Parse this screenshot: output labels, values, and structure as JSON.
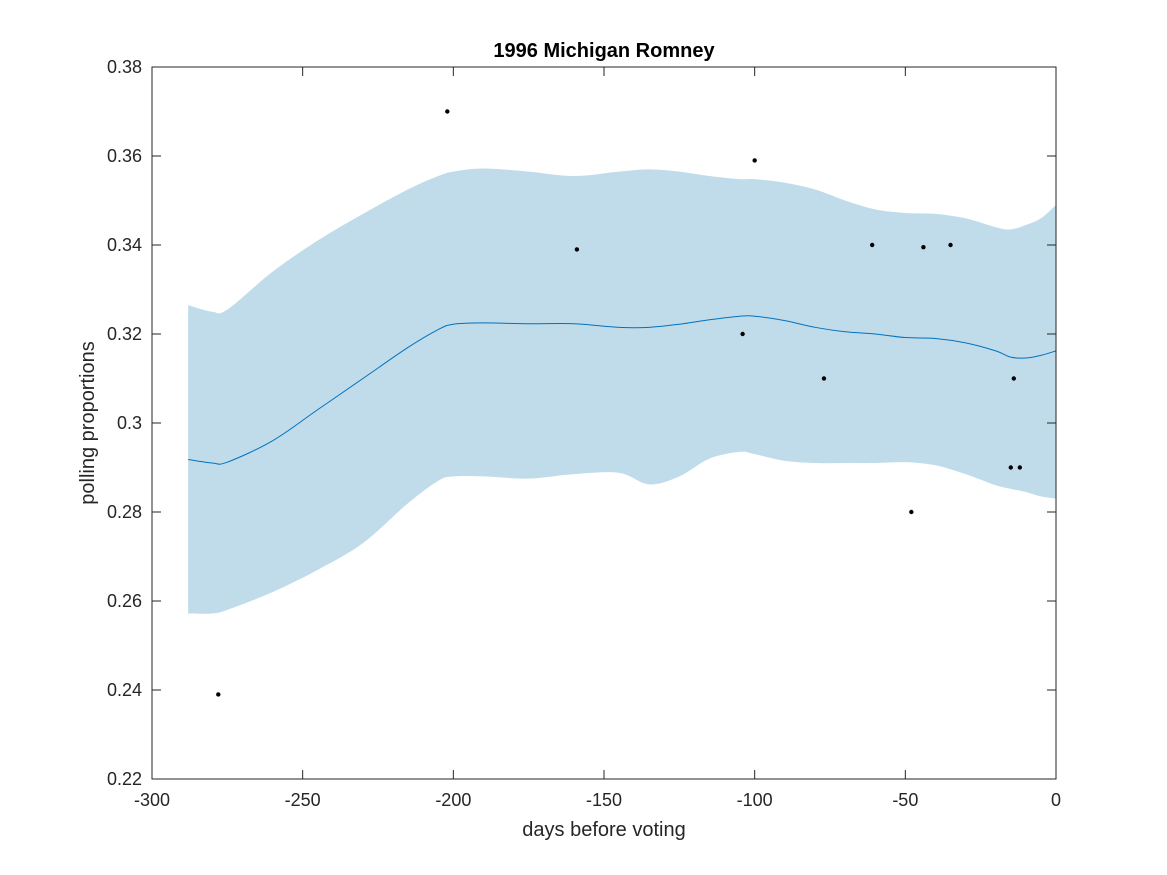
{
  "chart_data": {
    "type": "line",
    "title": "1996 Michigan Romney",
    "xlabel": "days before voting",
    "ylabel": "polling proportions",
    "xlim": [
      -300,
      0
    ],
    "ylim": [
      0.22,
      0.38
    ],
    "xticks": [
      -300,
      -250,
      -200,
      -150,
      -100,
      -50,
      0
    ],
    "xtick_labels": [
      "-300",
      "-250",
      "-200",
      "-150",
      "-100",
      "-50",
      "0"
    ],
    "yticks": [
      0.22,
      0.24,
      0.26,
      0.28,
      0.3,
      0.32,
      0.34,
      0.36,
      0.38
    ],
    "ytick_labels": [
      "0.22",
      "0.24",
      "0.26",
      "0.28",
      "0.3",
      "0.32",
      "0.34",
      "0.36",
      "0.38"
    ],
    "grid": false,
    "colors": {
      "line": "#0072BD",
      "band": "#C0DCEB",
      "points": "#000000",
      "axes": "#262626"
    },
    "trend": {
      "x": [
        -288,
        -280,
        -275,
        -260,
        -245,
        -230,
        -215,
        -205,
        -200,
        -190,
        -175,
        -160,
        -145,
        -135,
        -125,
        -115,
        -105,
        -100,
        -90,
        -80,
        -70,
        -60,
        -50,
        -40,
        -30,
        -20,
        -15,
        -10,
        -5,
        0
      ],
      "mean": [
        0.2918,
        0.291,
        0.2912,
        0.296,
        0.303,
        0.31,
        0.317,
        0.321,
        0.3222,
        0.3225,
        0.3223,
        0.3223,
        0.3215,
        0.3215,
        0.3222,
        0.3232,
        0.324,
        0.324,
        0.323,
        0.3215,
        0.3205,
        0.32,
        0.3192,
        0.319,
        0.318,
        0.3162,
        0.3148,
        0.3146,
        0.3152,
        0.3162
      ],
      "upper": [
        0.3265,
        0.325,
        0.3255,
        0.334,
        0.341,
        0.347,
        0.3525,
        0.3555,
        0.3565,
        0.3572,
        0.3565,
        0.3555,
        0.3565,
        0.357,
        0.3565,
        0.3555,
        0.3548,
        0.3548,
        0.354,
        0.3525,
        0.35,
        0.348,
        0.3472,
        0.347,
        0.346,
        0.344,
        0.3435,
        0.3445,
        0.346,
        0.349
      ],
      "lower": [
        0.2572,
        0.2572,
        0.258,
        0.262,
        0.267,
        0.273,
        0.282,
        0.287,
        0.288,
        0.288,
        0.2875,
        0.2885,
        0.2888,
        0.2862,
        0.288,
        0.292,
        0.2935,
        0.293,
        0.2915,
        0.291,
        0.291,
        0.291,
        0.2912,
        0.2905,
        0.2885,
        0.286,
        0.2852,
        0.2845,
        0.2835,
        0.283
      ]
    },
    "points": [
      {
        "x": -278,
        "y": 0.239
      },
      {
        "x": -202,
        "y": 0.37
      },
      {
        "x": -159,
        "y": 0.339
      },
      {
        "x": -104,
        "y": 0.32
      },
      {
        "x": -100,
        "y": 0.359
      },
      {
        "x": -77,
        "y": 0.31
      },
      {
        "x": -61,
        "y": 0.34
      },
      {
        "x": -48,
        "y": 0.28
      },
      {
        "x": -44,
        "y": 0.3395
      },
      {
        "x": -35,
        "y": 0.34
      },
      {
        "x": -15,
        "y": 0.29
      },
      {
        "x": -14,
        "y": 0.31
      },
      {
        "x": -12,
        "y": 0.29
      }
    ]
  }
}
